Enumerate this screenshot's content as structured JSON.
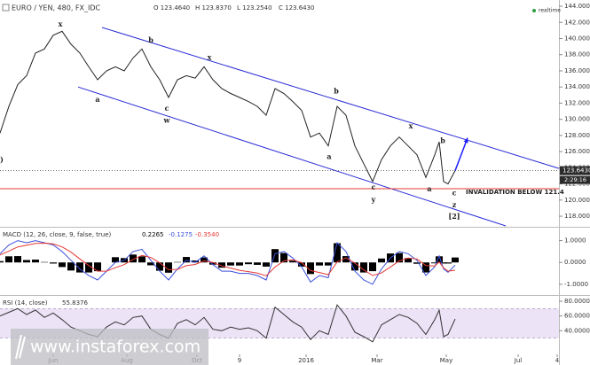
{
  "header": {
    "symbol": "EURO / YEN, 480, FX_IDC",
    "ohlc": [
      "O 123.4640",
      "H 123.8370",
      "L 123.2540",
      "C 123.6430"
    ],
    "status": "realtime"
  },
  "watermark": "www.instaforex.com",
  "chart_data": [
    {
      "type": "line",
      "color": "#222222",
      "xlim": [
        0,
        126
      ],
      "ylim": [
        116.8,
        144.77
      ],
      "x": [
        0,
        2,
        4,
        6,
        8,
        10,
        12,
        14,
        16,
        18,
        20,
        22,
        24,
        26,
        28,
        30,
        32,
        34,
        36,
        38,
        40,
        42,
        44,
        46,
        48,
        50,
        52,
        54,
        56,
        58,
        60,
        62,
        64,
        66,
        68,
        70,
        72,
        74,
        76,
        78,
        80,
        82,
        84,
        86,
        88,
        90,
        92,
        94,
        96,
        98,
        99,
        100,
        101,
        102.6
      ],
      "values": [
        128.3,
        131.6,
        134.3,
        135.4,
        138.2,
        138.7,
        140.4,
        140.9,
        139.3,
        138.2,
        136.5,
        134.9,
        136.0,
        136.5,
        136.0,
        137.6,
        138.7,
        136.5,
        134.9,
        132.7,
        134.9,
        135.4,
        135.1,
        136.5,
        134.9,
        133.8,
        133.2,
        132.7,
        132.2,
        131.6,
        130.5,
        133.8,
        133.2,
        132.2,
        131.1,
        127.8,
        128.3,
        126.7,
        131.6,
        130.5,
        126.7,
        124.5,
        122.3,
        125.0,
        126.7,
        127.8,
        126.7,
        125.6,
        122.8,
        125.6,
        127.2,
        122.3,
        122.0,
        123.643
      ],
      "yticks": [
        {
          "value": 144,
          "label": "144.0000"
        },
        {
          "value": 142,
          "label": "142.0000"
        },
        {
          "value": 140,
          "label": "140.0000"
        },
        {
          "value": 138,
          "label": "138.0000"
        },
        {
          "value": 136,
          "label": "136.0000"
        },
        {
          "value": 134,
          "label": "134.0000"
        },
        {
          "value": 132,
          "label": "132.0000"
        },
        {
          "value": 130,
          "label": "130.0000"
        },
        {
          "value": 128,
          "label": "128.0000"
        },
        {
          "value": 126,
          "label": "126.0000"
        },
        {
          "value": 124,
          "label": "124.0000"
        },
        {
          "value": 122,
          "label": "122.0000"
        },
        {
          "value": 120,
          "label": "120.0000"
        },
        {
          "value": 118,
          "label": "118.0000"
        }
      ],
      "last_price": {
        "value": 123.643,
        "label": "123.6430",
        "time": "2:29:16"
      },
      "invalidation": {
        "value": 121.4,
        "label": "INVALIDATION BELOW 121.4",
        "color": "#e53935"
      },
      "channel": {
        "color": "#2b2bd6",
        "lines": [
          {
            "x": [
              23,
              126
            ],
            "values": [
              141.37,
              123.92
            ]
          },
          {
            "x": [
              17.6,
              114
            ],
            "values": [
              134.0,
              116.8
            ]
          }
        ]
      },
      "projection": {
        "x": [
          102.6,
          105.4
        ],
        "values": [
          123.643,
          127.7
        ],
        "color": "#1a1aff"
      },
      "waves": [
        {
          "text": ")",
          "x": 0.4,
          "y": 124.9
        },
        {
          "text": "x",
          "x": 13.6,
          "y": 141.7
        },
        {
          "text": "a",
          "x": 22,
          "y": 132.4
        },
        {
          "text": "b",
          "x": 34,
          "y": 139.7
        },
        {
          "text": "c",
          "x": 37.6,
          "y": 131.3
        },
        {
          "text": "w",
          "x": 37.6,
          "y": 129.8
        },
        {
          "text": "x",
          "x": 47.2,
          "y": 137.6
        },
        {
          "text": "b",
          "x": 75.8,
          "y": 133.4
        },
        {
          "text": "a",
          "x": 74.2,
          "y": 125.3
        },
        {
          "text": "x",
          "x": 92.6,
          "y": 129.1
        },
        {
          "text": "b",
          "x": 99.8,
          "y": 127.3
        },
        {
          "text": "c",
          "x": 84.2,
          "y": 121.5
        },
        {
          "text": "y",
          "x": 84.2,
          "y": 120.0
        },
        {
          "text": "a",
          "x": 96.8,
          "y": 121.3
        },
        {
          "text": "c",
          "x": 102.4,
          "y": 120.8
        },
        {
          "text": "z",
          "x": 102.4,
          "y": 119.3
        },
        {
          "text": "[2]",
          "x": 102.4,
          "y": 117.9
        }
      ]
    },
    {
      "type": "macd",
      "title": "MACD (12, 26, close, 9, false, true)",
      "readout": [
        "0.2265",
        "-0.1275",
        "-0.3540"
      ],
      "xlim": [
        0,
        126
      ],
      "ylim": [
        -1.45,
        1.55
      ],
      "x": [
        0,
        2,
        4,
        6,
        8,
        10,
        12,
        14,
        16,
        18,
        20,
        22,
        24,
        26,
        28,
        30,
        32,
        34,
        36,
        38,
        40,
        42,
        44,
        46,
        48,
        50,
        52,
        54,
        56,
        58,
        60,
        62,
        64,
        66,
        68,
        70,
        72,
        74,
        76,
        78,
        80,
        82,
        84,
        86,
        88,
        90,
        92,
        94,
        96,
        98,
        99,
        100,
        101,
        102.6
      ],
      "series": [
        {
          "name": "histogram",
          "color": "#000000",
          "values": [
            0.06,
            0.28,
            0.29,
            0.11,
            0.13,
            0.02,
            -0.05,
            -0.21,
            -0.37,
            -0.46,
            -0.46,
            -0.4,
            0,
            0.24,
            0.2,
            0.36,
            0.28,
            -0.13,
            -0.38,
            -0.47,
            0.02,
            0.25,
            0.09,
            0.23,
            -0.1,
            -0.24,
            -0.14,
            -0.14,
            -0.08,
            -0.11,
            -0.19,
            0.61,
            0.43,
            0.08,
            -0.19,
            -0.53,
            -0.14,
            -0.14,
            0.88,
            0.29,
            -0.37,
            -0.46,
            -0.4,
            0.18,
            0.41,
            0.43,
            0.2,
            -0.06,
            -0.46,
            -0.04,
            0.28,
            -0.05,
            -0.05,
            0.2265
          ]
        },
        {
          "name": "macd",
          "color": "#3a4fd8",
          "values": [
            0.4,
            0.8,
            1.0,
            0.9,
            1.0,
            0.9,
            0.8,
            0.5,
            0.1,
            -0.3,
            -0.6,
            -0.8,
            -0.4,
            0.0,
            0.1,
            0.5,
            0.6,
            0.1,
            -0.4,
            -0.8,
            -0.3,
            0.1,
            0.0,
            0.3,
            -0.1,
            -0.4,
            -0.4,
            -0.5,
            -0.5,
            -0.6,
            -0.8,
            0.4,
            0.5,
            0.2,
            -0.2,
            -0.9,
            -0.6,
            -0.7,
            0.9,
            0.5,
            -0.4,
            -0.8,
            -1.0,
            -0.3,
            0.2,
            0.5,
            0.4,
            0.1,
            -0.6,
            -0.2,
            0.3,
            -0.3,
            -0.45,
            -0.1275
          ]
        },
        {
          "name": "signal",
          "color": "#e53935",
          "values": [
            0.34,
            0.52,
            0.71,
            0.79,
            0.87,
            0.88,
            0.85,
            0.71,
            0.47,
            0.16,
            -0.14,
            -0.4,
            -0.4,
            -0.24,
            -0.1,
            0.14,
            0.32,
            0.23,
            -0.02,
            -0.33,
            -0.32,
            -0.15,
            -0.09,
            0.07,
            0,
            -0.16,
            -0.26,
            -0.36,
            -0.42,
            -0.49,
            -0.61,
            -0.21,
            0.07,
            0.12,
            -0.01,
            -0.37,
            -0.46,
            -0.56,
            0.02,
            0.21,
            -0.03,
            -0.34,
            -0.6,
            -0.48,
            -0.21,
            0.07,
            0.2,
            0.16,
            -0.14,
            -0.16,
            0.02,
            -0.25,
            -0.4,
            -0.354
          ]
        }
      ],
      "yticks": [
        {
          "value": 1,
          "label": "1.0000"
        },
        {
          "value": 0,
          "label": "0.0000"
        },
        {
          "value": -1,
          "label": "-1.0000"
        }
      ]
    },
    {
      "type": "line",
      "title": "RSI (14, close)",
      "color": "#333333",
      "xlim": [
        0,
        126
      ],
      "ylim": [
        8,
        86
      ],
      "x": [
        0,
        2,
        4,
        6,
        8,
        10,
        12,
        14,
        16,
        18,
        20,
        22,
        24,
        26,
        28,
        30,
        32,
        34,
        36,
        38,
        40,
        42,
        44,
        46,
        48,
        50,
        52,
        54,
        56,
        58,
        60,
        62,
        64,
        66,
        68,
        70,
        72,
        74,
        76,
        78,
        80,
        82,
        84,
        86,
        88,
        90,
        92,
        94,
        96,
        98,
        99,
        100,
        101,
        102.6
      ],
      "values": [
        60,
        65,
        70,
        62,
        68,
        58,
        64,
        55,
        45,
        40,
        35,
        32,
        45,
        52,
        48,
        58,
        60,
        42,
        35,
        30,
        50,
        55,
        48,
        58,
        42,
        40,
        45,
        42,
        44,
        40,
        30,
        72,
        62,
        52,
        45,
        28,
        40,
        35,
        75,
        60,
        38,
        32,
        25,
        48,
        55,
        62,
        58,
        50,
        35,
        55,
        68,
        32,
        35,
        55.8376
      ],
      "band": {
        "range": [
          30,
          70
        ],
        "color": "#ece3f7"
      },
      "yticks": [
        {
          "value": 80,
          "label": "80.0000"
        },
        {
          "value": 60,
          "label": "60.0000"
        },
        {
          "value": 40,
          "label": "40.0000"
        }
      ],
      "xticks": [
        {
          "value": 12,
          "label": "Jun"
        },
        {
          "value": 28.6,
          "label": "Aug"
        },
        {
          "value": 44.4,
          "label": "Oct"
        },
        {
          "value": 54,
          "label": "9"
        },
        {
          "value": 69,
          "label": "2016"
        },
        {
          "value": 85,
          "label": "Mar"
        },
        {
          "value": 100.6,
          "label": "May"
        },
        {
          "value": 116.8,
          "label": "Jul"
        },
        {
          "value": 125.6,
          "label": "4"
        }
      ]
    }
  ]
}
